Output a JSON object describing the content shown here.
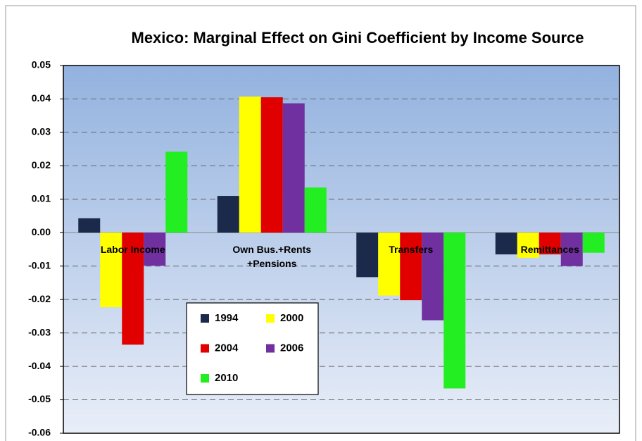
{
  "chart_data": {
    "type": "bar",
    "title": "Mexico: Marginal Effect on Gini Coefficient by Income Source",
    "categories": [
      "Labor Income",
      "Own Bus.+Rents +Pensions",
      "Transfers",
      "Remittances"
    ],
    "series": [
      {
        "name": "1994",
        "color": "#1b2a4a",
        "values": [
          0.0043,
          0.011,
          -0.0133,
          -0.0065
        ]
      },
      {
        "name": "2000",
        "color": "#ffff00",
        "values": [
          -0.0223,
          0.0407,
          -0.0188,
          -0.0075
        ]
      },
      {
        "name": "2004",
        "color": "#e00000",
        "values": [
          -0.0335,
          0.0405,
          -0.0202,
          -0.0065
        ]
      },
      {
        "name": "2006",
        "color": "#7030a0",
        "values": [
          -0.0099,
          0.0387,
          -0.0262,
          -0.01
        ]
      },
      {
        "name": "2010",
        "color": "#22ee22",
        "values": [
          0.0242,
          0.0135,
          -0.0466,
          -0.006
        ]
      }
    ],
    "ylim": [
      -0.06,
      0.05
    ],
    "yticks": [
      -0.06,
      -0.05,
      -0.04,
      -0.03,
      -0.02,
      -0.01,
      {
        "value": 0,
        "label": "0.00"
      },
      0.01,
      0.02,
      0.03,
      0.04,
      0.05
    ],
    "grid": true
  }
}
